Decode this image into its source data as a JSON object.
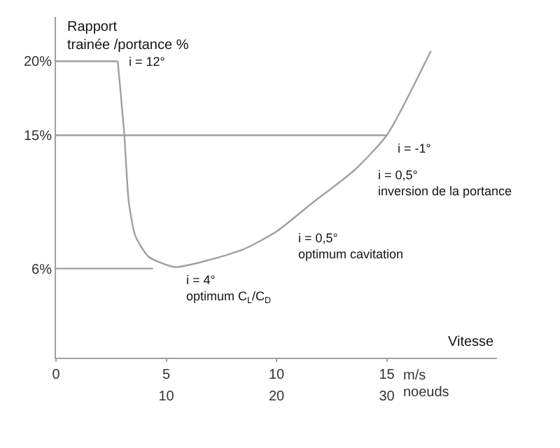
{
  "chart_data": {
    "type": "line",
    "xlabel": "Vitesse",
    "ylabel": "Rapport\ntrainée /portance %",
    "xlim": [
      0,
      20
    ],
    "ylim": [
      0,
      23
    ],
    "xticks": [
      0,
      5,
      10,
      15
    ],
    "x2lim": [
      0,
      40
    ],
    "x2ticks": [
      10,
      20,
      30
    ],
    "x2label": "noeuds",
    "yticks": [
      {
        "value": 6,
        "label": "6%"
      },
      {
        "value": 15,
        "label": "15%"
      },
      {
        "value": 20,
        "label": "20%"
      }
    ],
    "marker": "none",
    "line_style": "solid",
    "series": [
      {
        "color": "#a0a0a0",
        "x": [
          2.8,
          3.1,
          3.3,
          3.6,
          4.2,
          5.4,
          7,
          8.5,
          10,
          11.6,
          13.5,
          15,
          17
        ],
        "values": [
          20,
          15,
          10.5,
          8.2,
          6.8,
          6.1,
          6.6,
          7.3,
          8.5,
          10.4,
          12.6,
          15,
          20.7
        ]
      },
      {
        "color": "#a0a0a0",
        "x": [
          0,
          2.8
        ],
        "values": [
          20,
          20
        ]
      },
      {
        "color": "#a0a0a0",
        "x": [
          0,
          15
        ],
        "values": [
          15,
          15
        ]
      },
      {
        "color": "#a0a0a0",
        "x": [
          0,
          4.4
        ],
        "values": [
          6,
          6
        ]
      }
    ],
    "annotations": [
      {
        "text": "i = 12°",
        "x": 2.8,
        "y": 20
      },
      {
        "text": "i = -1°",
        "x": 15,
        "y": 15
      },
      {
        "text": "i = 0,5°\ninversion de la portance",
        "x": 14.1,
        "y": 13.2
      },
      {
        "text": "i = 0,5°\noptimum cavitation",
        "x": 10.5,
        "y": 8.9
      },
      {
        "text": "i = 4°\noptimum C$_{L}$/C$_{D}$",
        "x": 5.4,
        "y": 6.1
      },
      "m/s"
    ]
  }
}
